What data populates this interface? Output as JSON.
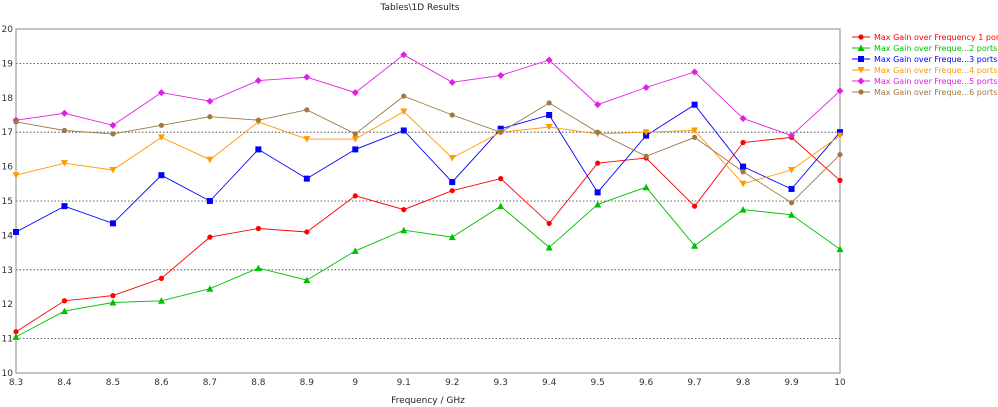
{
  "chart_data": {
    "type": "line",
    "title": "Tables\\1D Results",
    "xlabel": "Frequency / GHz",
    "ylabel": "",
    "xlim": [
      8.3,
      10
    ],
    "ylim": [
      10,
      20
    ],
    "grid": "horizontal dotted at odd integer values",
    "legend_position": "right",
    "x": [
      8.3,
      8.4,
      8.5,
      8.6,
      8.7,
      8.8,
      8.9,
      9.0,
      9.1,
      9.2,
      9.3,
      9.4,
      9.5,
      9.6,
      9.7,
      9.8,
      9.9,
      10.0
    ],
    "x_ticks": [
      "8.3",
      "8.4",
      "8.5",
      "8.6",
      "8.7",
      "8.8",
      "8.9",
      "9",
      "9.1",
      "9.2",
      "9.3",
      "9.4",
      "9.5",
      "9.6",
      "9.7",
      "9.8",
      "9.9",
      "10"
    ],
    "y_ticks": [
      "10",
      "11",
      "12",
      "13",
      "14",
      "15",
      "16",
      "17",
      "18",
      "19",
      "20"
    ],
    "series": [
      {
        "name": "Max Gain over Frequency 1 port",
        "color": "#ff0000",
        "marker": "circle",
        "values": [
          11.2,
          12.1,
          12.25,
          12.75,
          13.95,
          14.2,
          14.1,
          15.15,
          14.75,
          15.3,
          15.65,
          14.35,
          16.1,
          16.25,
          14.85,
          16.7,
          16.85,
          15.6
        ]
      },
      {
        "name": "Max Gain over Freque...2 ports",
        "color": "#00c000",
        "marker": "triangle-up",
        "values": [
          11.05,
          11.8,
          12.05,
          12.1,
          12.45,
          13.05,
          12.7,
          13.55,
          14.15,
          13.95,
          14.85,
          13.65,
          14.9,
          15.4,
          13.7,
          14.75,
          14.6,
          13.6
        ]
      },
      {
        "name": "Max Gain over Freque...3 ports",
        "color": "#0000ff",
        "marker": "square",
        "values": [
          14.1,
          14.85,
          14.35,
          15.75,
          15.0,
          16.5,
          15.65,
          16.5,
          17.05,
          15.55,
          17.1,
          17.5,
          15.25,
          16.9,
          17.8,
          16.0,
          15.35,
          17.0
        ]
      },
      {
        "name": "Max Gain over Freque...4 ports",
        "color": "#ff9900",
        "marker": "triangle-down",
        "values": [
          15.75,
          16.1,
          15.9,
          16.85,
          16.2,
          17.3,
          16.8,
          16.8,
          17.6,
          16.25,
          17.0,
          17.15,
          16.95,
          17.0,
          17.05,
          15.5,
          15.9,
          16.9
        ]
      },
      {
        "name": "Max Gain over Freque...5 ports",
        "color": "#e020e0",
        "marker": "diamond",
        "values": [
          17.35,
          17.55,
          17.2,
          18.15,
          17.9,
          18.5,
          18.6,
          18.15,
          19.25,
          18.45,
          18.65,
          19.1,
          17.8,
          18.3,
          18.75,
          17.4,
          16.9,
          18.2
        ]
      },
      {
        "name": "Max Gain over Freque...6 ports",
        "color": "#a07840",
        "marker": "circle",
        "values": [
          17.3,
          17.05,
          16.95,
          17.2,
          17.45,
          17.35,
          17.65,
          16.95,
          18.05,
          17.5,
          17.0,
          17.85,
          17.0,
          16.3,
          16.85,
          15.85,
          14.95,
          16.35
        ]
      }
    ]
  }
}
